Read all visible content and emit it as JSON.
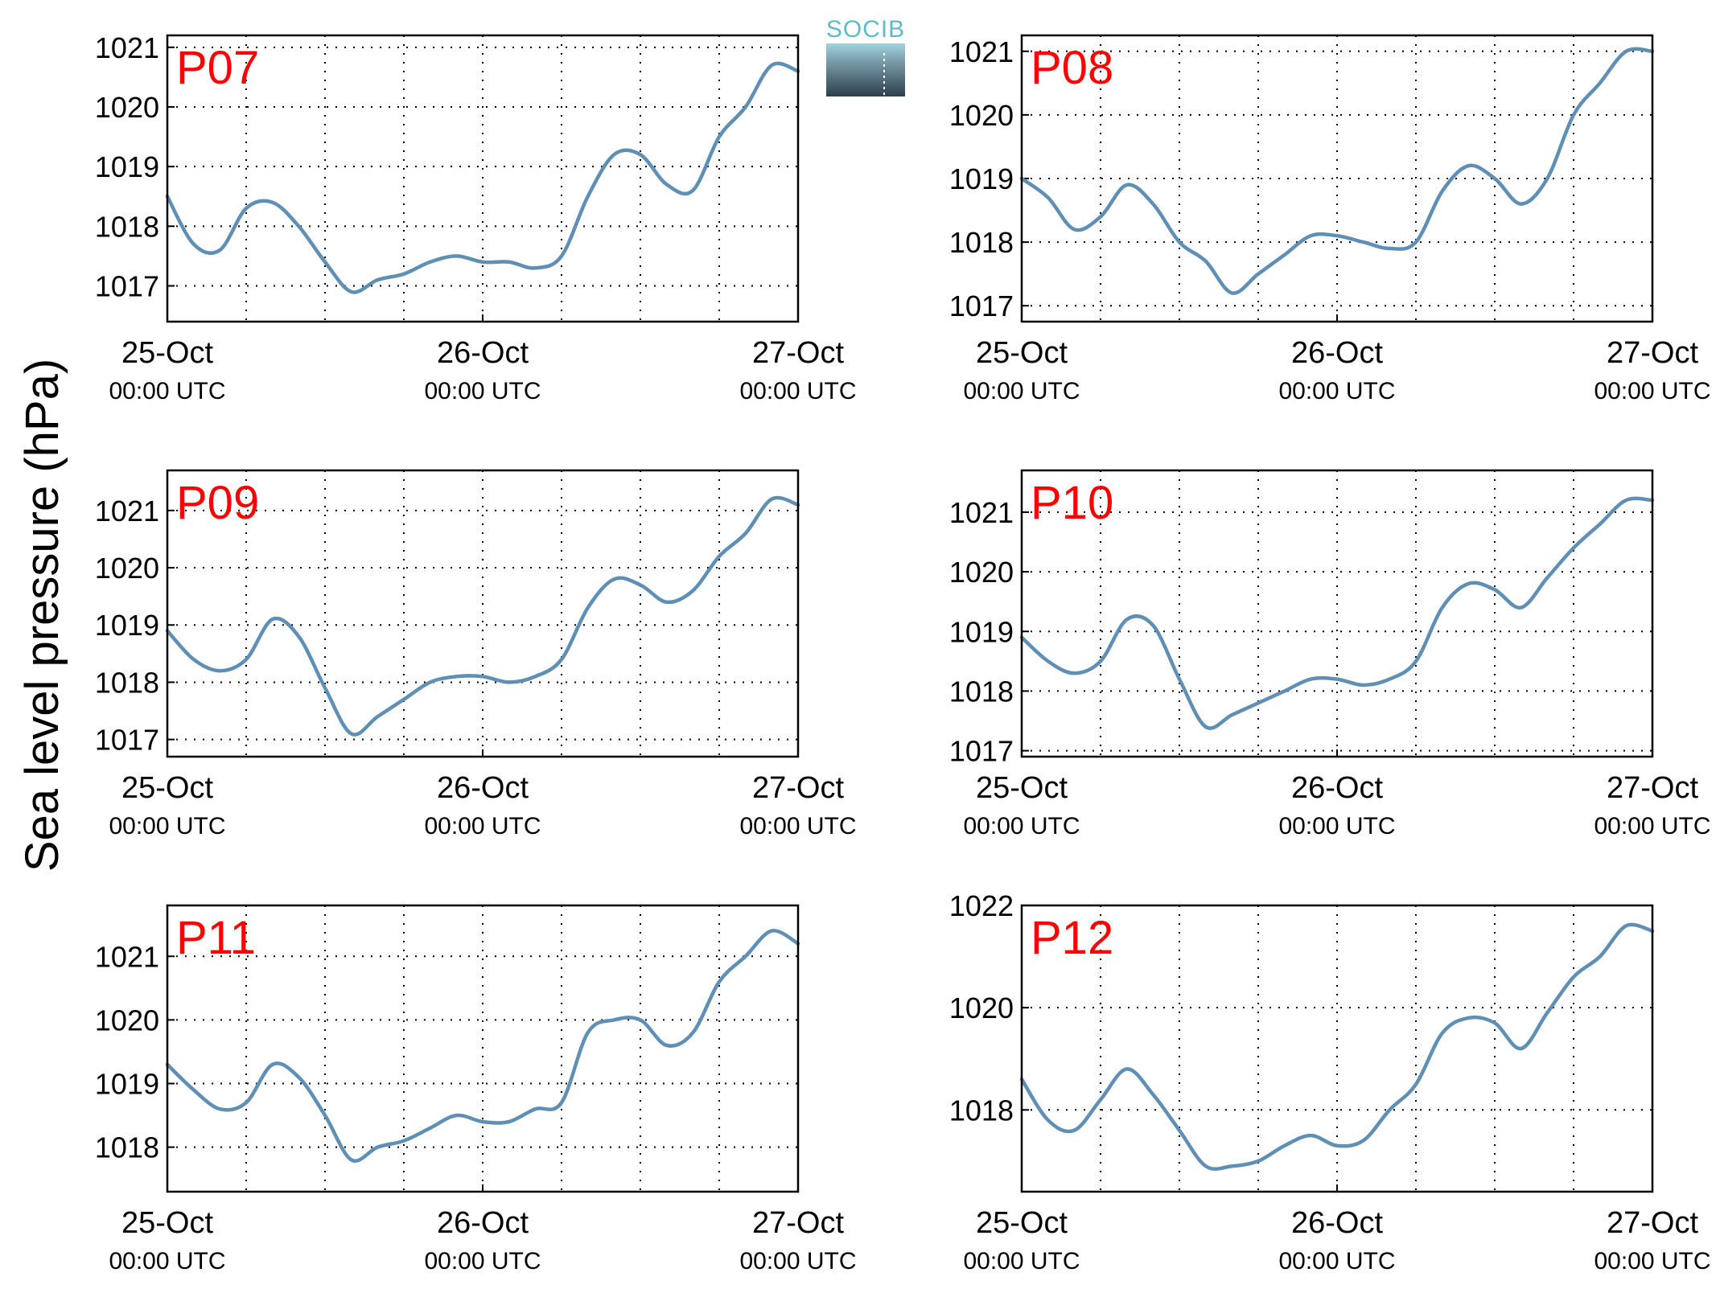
{
  "y_axis_label": "Sea level pressure (hPa)",
  "logo": {
    "text": "SOCIB"
  },
  "colors": {
    "series": "#5f8fb4",
    "panel_title": "#ff0000",
    "logo_top": "#62b9cc",
    "logo_bottom": "#2b3f4d"
  },
  "chart_data": [
    {
      "type": "line",
      "title": "P07",
      "x_ticks": [
        {
          "date": "25-Oct",
          "time": "00:00 UTC"
        },
        {
          "date": "26-Oct",
          "time": "00:00 UTC"
        },
        {
          "date": "27-Oct",
          "time": "00:00 UTC"
        }
      ],
      "xlim": [
        "2023-10-25 00:00",
        "2023-10-27 00:00"
      ],
      "ylim": [
        1016.4,
        1021.2
      ],
      "yticks": [
        1017,
        1018,
        1019,
        1020,
        1021
      ],
      "grid": true,
      "series": [
        {
          "x": [
            0,
            2,
            4,
            6,
            8,
            10,
            12,
            14,
            16,
            18,
            20,
            22,
            24,
            26,
            28,
            30,
            32,
            34,
            36,
            38,
            40,
            42,
            44,
            46,
            48
          ],
          "y": [
            1018.5,
            1017.7,
            1017.6,
            1018.3,
            1018.4,
            1018.0,
            1017.4,
            1016.9,
            1017.1,
            1017.2,
            1017.4,
            1017.5,
            1017.4,
            1017.4,
            1017.3,
            1017.5,
            1018.5,
            1019.2,
            1019.2,
            1018.7,
            1018.6,
            1019.5,
            1020.0,
            1020.7,
            1020.6
          ]
        }
      ]
    },
    {
      "type": "line",
      "title": "P08",
      "x_ticks": [
        {
          "date": "25-Oct",
          "time": "00:00 UTC"
        },
        {
          "date": "26-Oct",
          "time": "00:00 UTC"
        },
        {
          "date": "27-Oct",
          "time": "00:00 UTC"
        }
      ],
      "xlim": [
        "2023-10-25 00:00",
        "2023-10-27 00:00"
      ],
      "ylim": [
        1016.75,
        1021.25
      ],
      "yticks": [
        1017,
        1018,
        1019,
        1020,
        1021
      ],
      "grid": true,
      "series": [
        {
          "x": [
            0,
            2,
            4,
            6,
            8,
            10,
            12,
            14,
            16,
            18,
            20,
            22,
            24,
            26,
            28,
            30,
            32,
            34,
            36,
            38,
            40,
            42,
            44,
            46,
            48
          ],
          "y": [
            1019.0,
            1018.7,
            1018.2,
            1018.4,
            1018.9,
            1018.6,
            1018.0,
            1017.7,
            1017.2,
            1017.5,
            1017.8,
            1018.1,
            1018.1,
            1018.0,
            1017.9,
            1018.0,
            1018.8,
            1019.2,
            1019.0,
            1018.6,
            1019.0,
            1020.0,
            1020.5,
            1021.0,
            1021.0
          ]
        }
      ]
    },
    {
      "type": "line",
      "title": "P09",
      "x_ticks": [
        {
          "date": "25-Oct",
          "time": "00:00 UTC"
        },
        {
          "date": "26-Oct",
          "time": "00:00 UTC"
        },
        {
          "date": "27-Oct",
          "time": "00:00 UTC"
        }
      ],
      "xlim": [
        "2023-10-25 00:00",
        "2023-10-27 00:00"
      ],
      "ylim": [
        1016.7,
        1021.7
      ],
      "yticks": [
        1017,
        1018,
        1019,
        1020,
        1021
      ],
      "grid": true,
      "series": [
        {
          "x": [
            0,
            2,
            4,
            6,
            8,
            10,
            12,
            14,
            16,
            18,
            20,
            22,
            24,
            26,
            28,
            30,
            32,
            34,
            36,
            38,
            40,
            42,
            44,
            46,
            48
          ],
          "y": [
            1018.9,
            1018.4,
            1018.2,
            1018.4,
            1019.1,
            1018.8,
            1017.9,
            1017.1,
            1017.4,
            1017.7,
            1018.0,
            1018.1,
            1018.1,
            1018.0,
            1018.1,
            1018.4,
            1019.3,
            1019.8,
            1019.7,
            1019.4,
            1019.6,
            1020.2,
            1020.6,
            1021.2,
            1021.1
          ]
        }
      ]
    },
    {
      "type": "line",
      "title": "P10",
      "x_ticks": [
        {
          "date": "25-Oct",
          "time": "00:00 UTC"
        },
        {
          "date": "26-Oct",
          "time": "00:00 UTC"
        },
        {
          "date": "27-Oct",
          "time": "00:00 UTC"
        }
      ],
      "xlim": [
        "2023-10-25 00:00",
        "2023-10-27 00:00"
      ],
      "ylim": [
        1016.9,
        1021.7
      ],
      "yticks": [
        1017,
        1018,
        1019,
        1020,
        1021
      ],
      "grid": true,
      "series": [
        {
          "x": [
            0,
            2,
            4,
            6,
            8,
            10,
            12,
            14,
            16,
            18,
            20,
            22,
            24,
            26,
            28,
            30,
            32,
            34,
            36,
            38,
            40,
            42,
            44,
            46,
            48
          ],
          "y": [
            1018.9,
            1018.5,
            1018.3,
            1018.5,
            1019.2,
            1019.1,
            1018.2,
            1017.4,
            1017.6,
            1017.8,
            1018.0,
            1018.2,
            1018.2,
            1018.1,
            1018.2,
            1018.5,
            1019.4,
            1019.8,
            1019.7,
            1019.4,
            1019.9,
            1020.4,
            1020.8,
            1021.2,
            1021.2
          ]
        }
      ]
    },
    {
      "type": "line",
      "title": "P11",
      "x_ticks": [
        {
          "date": "25-Oct",
          "time": "00:00 UTC"
        },
        {
          "date": "26-Oct",
          "time": "00:00 UTC"
        },
        {
          "date": "27-Oct",
          "time": "00:00 UTC"
        }
      ],
      "xlim": [
        "2023-10-25 00:00",
        "2023-10-27 00:00"
      ],
      "ylim": [
        1017.3,
        1021.8
      ],
      "yticks": [
        1018,
        1019,
        1020,
        1021
      ],
      "grid": true,
      "series": [
        {
          "x": [
            0,
            2,
            4,
            6,
            8,
            10,
            12,
            14,
            16,
            18,
            20,
            22,
            24,
            26,
            28,
            30,
            32,
            34,
            36,
            38,
            40,
            42,
            44,
            46,
            48
          ],
          "y": [
            1019.3,
            1018.9,
            1018.6,
            1018.7,
            1019.3,
            1019.1,
            1018.5,
            1017.8,
            1018.0,
            1018.1,
            1018.3,
            1018.5,
            1018.4,
            1018.4,
            1018.6,
            1018.7,
            1019.8,
            1020.0,
            1020.0,
            1019.6,
            1019.8,
            1020.6,
            1021.0,
            1021.4,
            1021.2
          ]
        }
      ]
    },
    {
      "type": "line",
      "title": "P12",
      "x_ticks": [
        {
          "date": "25-Oct",
          "time": "00:00 UTC"
        },
        {
          "date": "26-Oct",
          "time": "00:00 UTC"
        },
        {
          "date": "27-Oct",
          "time": "00:00 UTC"
        }
      ],
      "xlim": [
        "2023-10-25 00:00",
        "2023-10-27 00:00"
      ],
      "ylim": [
        1016.4,
        1022.0
      ],
      "yticks": [
        1018,
        1020,
        1022
      ],
      "grid": true,
      "series": [
        {
          "x": [
            0,
            2,
            4,
            6,
            8,
            10,
            12,
            14,
            16,
            18,
            20,
            22,
            24,
            26,
            28,
            30,
            32,
            34,
            36,
            38,
            40,
            42,
            44,
            46,
            48
          ],
          "y": [
            1018.6,
            1017.8,
            1017.6,
            1018.2,
            1018.8,
            1018.3,
            1017.6,
            1016.9,
            1016.9,
            1017.0,
            1017.3,
            1017.5,
            1017.3,
            1017.4,
            1018.0,
            1018.5,
            1019.5,
            1019.8,
            1019.7,
            1019.2,
            1019.9,
            1020.6,
            1021.0,
            1021.6,
            1021.5
          ]
        }
      ]
    }
  ]
}
